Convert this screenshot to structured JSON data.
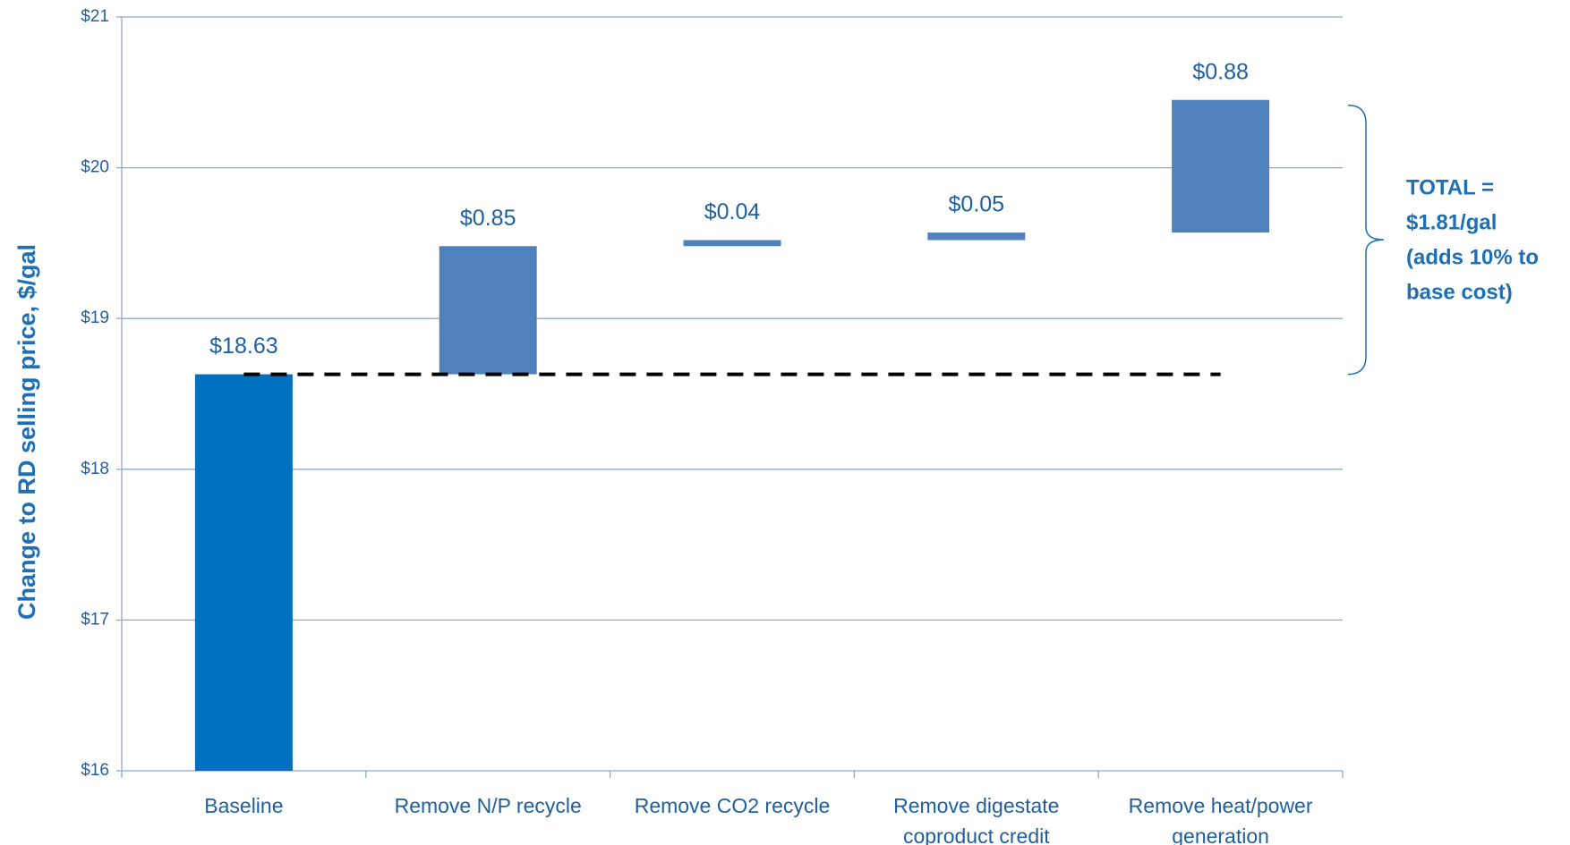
{
  "chart_data": {
    "type": "waterfall",
    "y_label": "Change to RD selling price, $/gal",
    "categories": [
      "Baseline",
      "Remove N/P recycle",
      "Remove CO2 recycle",
      "Remove digestate coproduct credit",
      "Remove heat/power generation"
    ],
    "values": [
      18.63,
      0.85,
      0.04,
      0.05,
      0.88
    ],
    "value_labels": [
      "$18.63",
      "$0.85",
      "$0.04",
      "$0.05",
      "$0.88"
    ],
    "colors": [
      "#0070c0",
      "#4f81bd",
      "#4f81bd",
      "#4f81bd",
      "#4f81bd"
    ],
    "ylim": [
      16,
      21
    ],
    "yticks": [
      {
        "value": 16,
        "label": "$16"
      },
      {
        "value": 17,
        "label": "$17"
      },
      {
        "value": 18,
        "label": "$18"
      },
      {
        "value": 19,
        "label": "$19"
      },
      {
        "value": 20,
        "label": "$20"
      },
      {
        "value": 21,
        "label": "$21"
      }
    ],
    "grid": true,
    "annotation": [
      "TOTAL =",
      "$1.81/gal",
      "(adds 10% to",
      "base cost)"
    ]
  }
}
